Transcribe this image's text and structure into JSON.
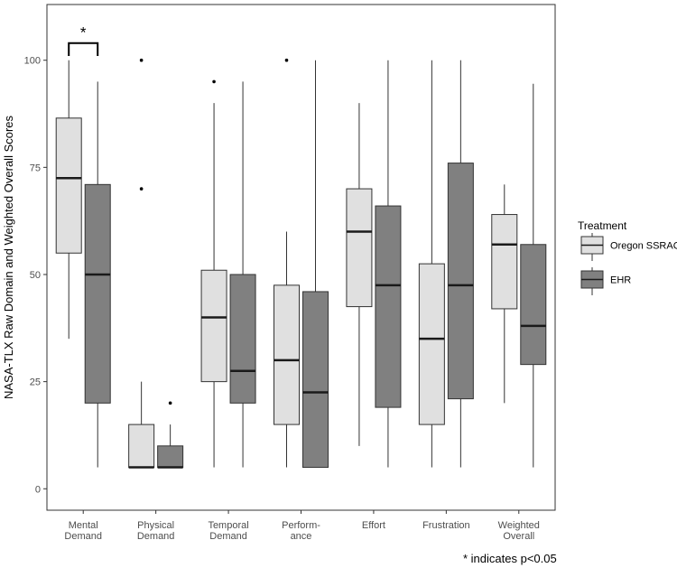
{
  "chart_data": {
    "type": "boxplot",
    "ylabel": "NASA-TLX Raw Domain and Weighted Overall Scores",
    "xlabel": "",
    "ylim": [
      -5,
      113
    ],
    "yticks": [
      0,
      25,
      50,
      75,
      100
    ],
    "categories": [
      [
        "Mental",
        "Demand"
      ],
      [
        "Physical",
        "Demand"
      ],
      [
        "Temporal",
        "Demand"
      ],
      [
        "Perform-",
        "ance"
      ],
      [
        "Effort"
      ],
      [
        "Frustration"
      ],
      [
        "Weighted",
        "Overall"
      ]
    ],
    "legend": {
      "title": "Treatment",
      "position": "right"
    },
    "series": [
      {
        "name": "Oregon SSRAQ",
        "color": "#e0e0e0",
        "boxes": [
          {
            "min": 35,
            "q1": 55,
            "median": 72.5,
            "q3": 86.5,
            "max": 100,
            "outliers": []
          },
          {
            "min": 5,
            "q1": 5,
            "median": 5,
            "q3": 15,
            "max": 25,
            "outliers": [
              70,
              100
            ]
          },
          {
            "min": 5,
            "q1": 25,
            "median": 40,
            "q3": 51,
            "max": 90,
            "outliers": [
              95
            ]
          },
          {
            "min": 5,
            "q1": 15,
            "median": 30,
            "q3": 47.5,
            "max": 60,
            "outliers": [
              100
            ]
          },
          {
            "min": 10,
            "q1": 42.5,
            "median": 60,
            "q3": 70,
            "max": 90,
            "outliers": []
          },
          {
            "min": 5,
            "q1": 15,
            "median": 35,
            "q3": 52.5,
            "max": 100,
            "outliers": []
          },
          {
            "min": 20,
            "q1": 42,
            "median": 57,
            "q3": 64,
            "max": 71,
            "outliers": []
          }
        ]
      },
      {
        "name": "EHR",
        "color": "#808080",
        "boxes": [
          {
            "min": 5,
            "q1": 20,
            "median": 50,
            "q3": 71,
            "max": 95,
            "outliers": []
          },
          {
            "min": 5,
            "q1": 5,
            "median": 5,
            "q3": 10,
            "max": 15,
            "outliers": [
              20
            ]
          },
          {
            "min": 5,
            "q1": 20,
            "median": 27.5,
            "q3": 50,
            "max": 95,
            "outliers": []
          },
          {
            "min": 5,
            "q1": 5,
            "median": 22.5,
            "q3": 46,
            "max": 100,
            "outliers": []
          },
          {
            "min": 5,
            "q1": 19,
            "median": 47.5,
            "q3": 66,
            "max": 100,
            "outliers": []
          },
          {
            "min": 5,
            "q1": 21,
            "median": 47.5,
            "q3": 76,
            "max": 100,
            "outliers": []
          },
          {
            "min": 5,
            "q1": 29,
            "median": 38,
            "q3": 57,
            "max": 94.5,
            "outliers": []
          }
        ]
      }
    ],
    "annotations": [
      {
        "text": "*",
        "category_index": 0,
        "type": "significance-bracket"
      }
    ],
    "footnote": "* indicates p<0.05"
  }
}
